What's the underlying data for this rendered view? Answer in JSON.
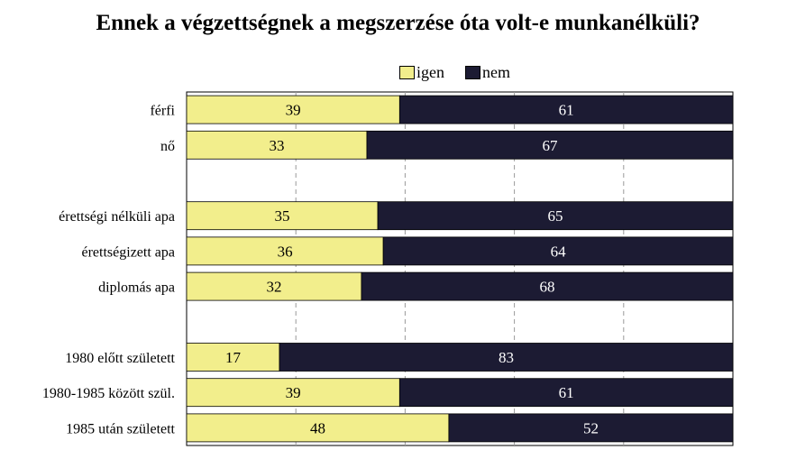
{
  "chart_data": {
    "type": "bar",
    "orientation": "horizontal",
    "stacked": true,
    "title": "Ennek a végzettségnek a megszerzése óta volt-e munkanélküli?",
    "categories": [
      "férfi",
      "nő",
      "",
      "érettségi nélküli apa",
      "érettségizett apa",
      "diplomás apa",
      "",
      "1980 előtt született",
      "1980-1985 között szül.",
      "1985 után született"
    ],
    "series": [
      {
        "name": "igen",
        "color": "#F2EE8C",
        "values": [
          39,
          33,
          null,
          35,
          36,
          32,
          null,
          17,
          39,
          48
        ]
      },
      {
        "name": "nem",
        "color": "#1C1B33",
        "values": [
          61,
          67,
          null,
          65,
          64,
          68,
          null,
          83,
          61,
          52
        ]
      }
    ],
    "xlim": [
      0,
      100
    ],
    "grid": true,
    "legend": "top"
  }
}
